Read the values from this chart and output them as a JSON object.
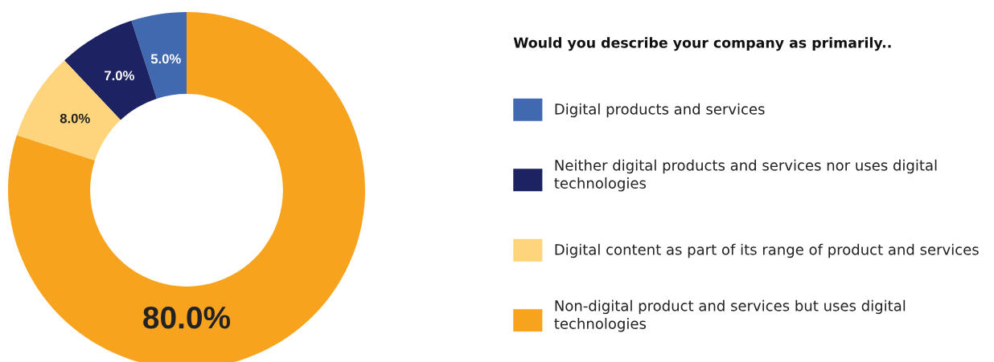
{
  "chart_data": {
    "type": "donut",
    "legend_title": "Would you describe your company as primarily..",
    "legend": "right",
    "categories": [
      "Digital products and services",
      "Neither digital products and services nor uses digital technologies",
      "Digital content as part of its range of product and services",
      "Non-digital product and services but uses digital technologies"
    ],
    "values": [
      5,
      7,
      8,
      80
    ],
    "value_labels": [
      "5.0%",
      "7.0%",
      "8.0%",
      "80.0%"
    ],
    "colors": [
      "#4169b0",
      "#1d2262",
      "#fed47c",
      "#f7a31e"
    ]
  }
}
